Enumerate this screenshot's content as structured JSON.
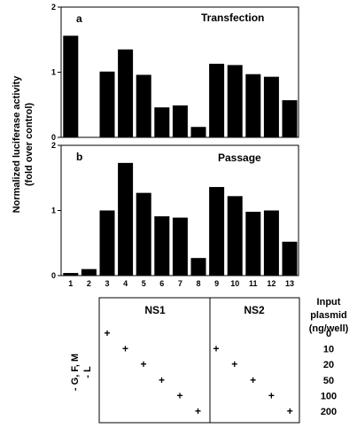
{
  "chart_data": [
    {
      "type": "bar",
      "panel_label": "a",
      "title": "Transfection",
      "categories": [
        "1",
        "2",
        "3",
        "4",
        "5",
        "6",
        "7",
        "8",
        "9",
        "10",
        "11",
        "12",
        "13"
      ],
      "values": [
        1.56,
        0,
        1.01,
        1.35,
        0.96,
        0.46,
        0.49,
        0.16,
        1.13,
        1.11,
        0.97,
        0.93,
        0.57
      ],
      "ylim": [
        0,
        2
      ],
      "yticks": [
        "0",
        "1",
        "2"
      ]
    },
    {
      "type": "bar",
      "panel_label": "b",
      "title": "Passage",
      "categories": [
        "1",
        "2",
        "3",
        "4",
        "5",
        "6",
        "7",
        "8",
        "9",
        "10",
        "11",
        "12",
        "13"
      ],
      "values": [
        0.04,
        0.1,
        1.0,
        1.73,
        1.27,
        0.91,
        0.89,
        0.27,
        1.36,
        1.22,
        0.98,
        1.0,
        0.52
      ],
      "ylim": [
        0,
        2
      ],
      "yticks": [
        "0",
        "1",
        "2"
      ]
    }
  ],
  "ylabel_line1": "Normalized luciferase activity",
  "ylabel_line2": "(fold over control)",
  "table": {
    "row_label_1": "- G, F, M",
    "row_label_2": "- L",
    "groups": [
      "NS1",
      "NS2"
    ],
    "input_label": [
      "Input",
      "plasmid",
      "(ng/well)"
    ],
    "doses": [
      "0",
      "10",
      "20",
      "50",
      "100",
      "200"
    ],
    "marker": "+",
    "ns1_marks": [
      "+",
      "+",
      "+",
      "+",
      "+",
      "+"
    ],
    "ns2_marks": [
      "+",
      "+",
      "+",
      "+",
      "+"
    ]
  }
}
